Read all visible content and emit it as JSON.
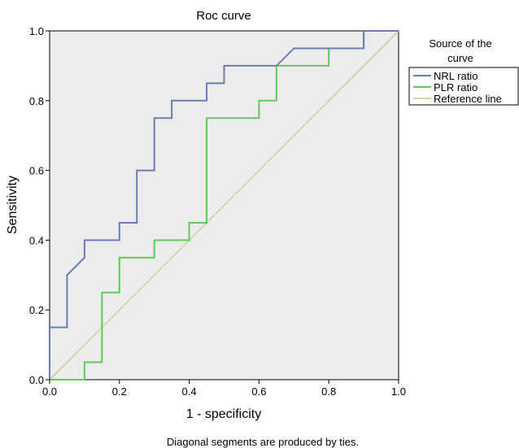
{
  "chart_data": {
    "type": "line",
    "title": "Roc curve",
    "xlabel": "1 - specificity",
    "ylabel": "Sensitivity",
    "xlim": [
      0.0,
      1.0
    ],
    "ylim": [
      0.0,
      1.0
    ],
    "xticks": [
      "0.0",
      "0.2",
      "0.4",
      "0.6",
      "0.8",
      "1.0"
    ],
    "yticks": [
      "0.0",
      "0.2",
      "0.4",
      "0.6",
      "0.8",
      "1.0"
    ],
    "grid": false,
    "background_color": "#ececec",
    "legend": {
      "title": "Source of the curve",
      "placement": "right",
      "entries": [
        "NRL ratio",
        "PLR ratio",
        "Reference line"
      ]
    },
    "series": [
      {
        "name": "NRL ratio",
        "color": "#6b7bb8",
        "x": [
          0.0,
          0.0,
          0.05,
          0.05,
          0.1,
          0.1,
          0.2,
          0.2,
          0.25,
          0.25,
          0.3,
          0.3,
          0.35,
          0.35,
          0.45,
          0.45,
          0.5,
          0.5,
          0.65,
          0.7,
          0.9,
          0.9,
          1.0
        ],
        "y": [
          0.0,
          0.15,
          0.15,
          0.3,
          0.35,
          0.4,
          0.4,
          0.45,
          0.45,
          0.6,
          0.6,
          0.75,
          0.75,
          0.8,
          0.8,
          0.85,
          0.85,
          0.9,
          0.9,
          0.95,
          0.95,
          1.0,
          1.0
        ]
      },
      {
        "name": "PLR ratio",
        "color": "#5ccb5c",
        "x": [
          0.0,
          0.1,
          0.1,
          0.15,
          0.15,
          0.2,
          0.2,
          0.3,
          0.3,
          0.4,
          0.4,
          0.45,
          0.45,
          0.6,
          0.6,
          0.65,
          0.65,
          0.8,
          0.8,
          0.9,
          0.9,
          1.0
        ],
        "y": [
          0.0,
          0.0,
          0.05,
          0.05,
          0.25,
          0.25,
          0.35,
          0.35,
          0.4,
          0.4,
          0.45,
          0.45,
          0.75,
          0.75,
          0.8,
          0.8,
          0.9,
          0.9,
          0.95,
          0.95,
          1.0,
          1.0
        ]
      },
      {
        "name": "Reference line",
        "color": "#d9d3a8",
        "x": [
          0.0,
          1.0
        ],
        "y": [
          0.0,
          1.0
        ]
      }
    ],
    "note": "Diagonal segments are produced by ties."
  }
}
